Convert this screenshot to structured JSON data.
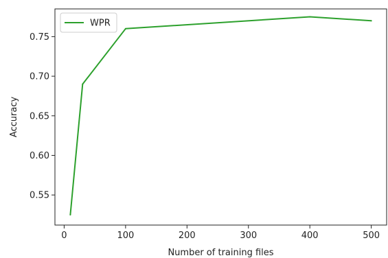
{
  "chart_data": {
    "type": "line",
    "xlabel": "Number of training files",
    "ylabel": "Accuracy",
    "xlim": [
      -15,
      525
    ],
    "ylim": [
      0.512,
      0.785
    ],
    "xticks": [
      0,
      100,
      200,
      300,
      400,
      500
    ],
    "xtick_labels": [
      "0",
      "100",
      "200",
      "300",
      "400",
      "500"
    ],
    "yticks": [
      0.55,
      0.6,
      0.65,
      0.7,
      0.75
    ],
    "ytick_labels": [
      "0.55",
      "0.60",
      "0.65",
      "0.70",
      "0.75"
    ],
    "grid": false,
    "legend_position": "top-left",
    "series": [
      {
        "name": "WPR",
        "color": "#2ca02c",
        "x": [
          10,
          30,
          100,
          400,
          500
        ],
        "y": [
          0.525,
          0.69,
          0.76,
          0.775,
          0.77
        ]
      }
    ]
  }
}
